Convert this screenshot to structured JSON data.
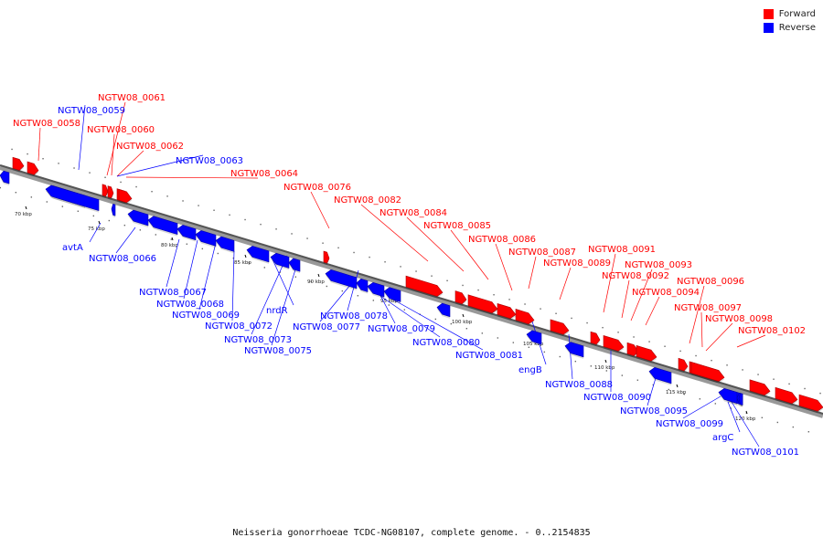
{
  "legend": {
    "forward_label": "Forward",
    "forward_color": "#ff0000",
    "reverse_label": "Reverse",
    "reverse_color": "#0000ff"
  },
  "caption": "Neisseria gonorrhoeae TCDC-NG08107, complete genome. - 0..2154835",
  "scale_labels": [
    "70 kbp",
    "75 kbp",
    "80 kbp",
    "85 kbp",
    "90 kbp",
    "95 kbp",
    "100 kbp",
    "105 kbp",
    "110 kbp",
    "115 kbp",
    "120 kbp"
  ],
  "genes": [
    {
      "name": "",
      "strand": "forward"
    },
    {
      "name": "NGTW08_0058",
      "strand": "forward"
    },
    {
      "name": "",
      "strand": "reverse"
    },
    {
      "name": "NGTW08_0059",
      "strand": "reverse"
    },
    {
      "name": "avtA",
      "strand": "reverse"
    },
    {
      "name": "NGTW08_0061",
      "strand": "forward"
    },
    {
      "name": "NGTW08_0060",
      "strand": "forward"
    },
    {
      "name": "NGTW08_0062",
      "strand": "forward"
    },
    {
      "name": "NGTW08_0063",
      "strand": "reverse"
    },
    {
      "name": "NGTW08_0064",
      "strand": "forward"
    },
    {
      "name": "NGTW08_0066",
      "strand": "reverse"
    },
    {
      "name": "NGTW08_0067",
      "strand": "reverse"
    },
    {
      "name": "NGTW08_0068",
      "strand": "reverse"
    },
    {
      "name": "NGTW08_0069",
      "strand": "reverse"
    },
    {
      "name": "NGTW08_0072",
      "strand": "reverse"
    },
    {
      "name": "nrdR",
      "strand": "reverse"
    },
    {
      "name": "NGTW08_0073",
      "strand": "reverse"
    },
    {
      "name": "NGTW08_0075",
      "strand": "reverse"
    },
    {
      "name": "NGTW08_0076",
      "strand": "forward"
    },
    {
      "name": "NGTW08_0078",
      "strand": "reverse"
    },
    {
      "name": "NGTW08_0077",
      "strand": "reverse"
    },
    {
      "name": "NGTW08_0079",
      "strand": "reverse"
    },
    {
      "name": "NGTW08_0080",
      "strand": "reverse"
    },
    {
      "name": "NGTW08_0082",
      "strand": "forward"
    },
    {
      "name": "NGTW08_0084",
      "strand": "forward"
    },
    {
      "name": "NGTW08_0081",
      "strand": "reverse"
    },
    {
      "name": "NGTW08_0085",
      "strand": "forward"
    },
    {
      "name": "NGTW08_0086",
      "strand": "forward"
    },
    {
      "name": "NGTW08_0087",
      "strand": "forward"
    },
    {
      "name": "engB",
      "strand": "reverse"
    },
    {
      "name": "NGTW08_0088",
      "strand": "reverse"
    },
    {
      "name": "NGTW08_0089",
      "strand": "forward"
    },
    {
      "name": "NGTW08_0090",
      "strand": "reverse"
    },
    {
      "name": "NGTW08_0091",
      "strand": "forward"
    },
    {
      "name": "NGTW08_0092",
      "strand": "forward"
    },
    {
      "name": "NGTW08_0093",
      "strand": "forward"
    },
    {
      "name": "NGTW08_0094",
      "strand": "forward"
    },
    {
      "name": "NGTW08_0095",
      "strand": "reverse"
    },
    {
      "name": "NGTW08_0096",
      "strand": "forward"
    },
    {
      "name": "NGTW08_0097",
      "strand": "forward"
    },
    {
      "name": "NGTW08_0098",
      "strand": "forward"
    },
    {
      "name": "NGTW08_0099",
      "strand": "reverse"
    },
    {
      "name": "argC",
      "strand": "reverse"
    },
    {
      "name": "NGTW08_0101",
      "strand": "reverse"
    },
    {
      "name": "NGTW08_0102",
      "strand": "forward"
    },
    {
      "name": "",
      "strand": "forward"
    },
    {
      "name": "",
      "strand": "forward"
    }
  ]
}
